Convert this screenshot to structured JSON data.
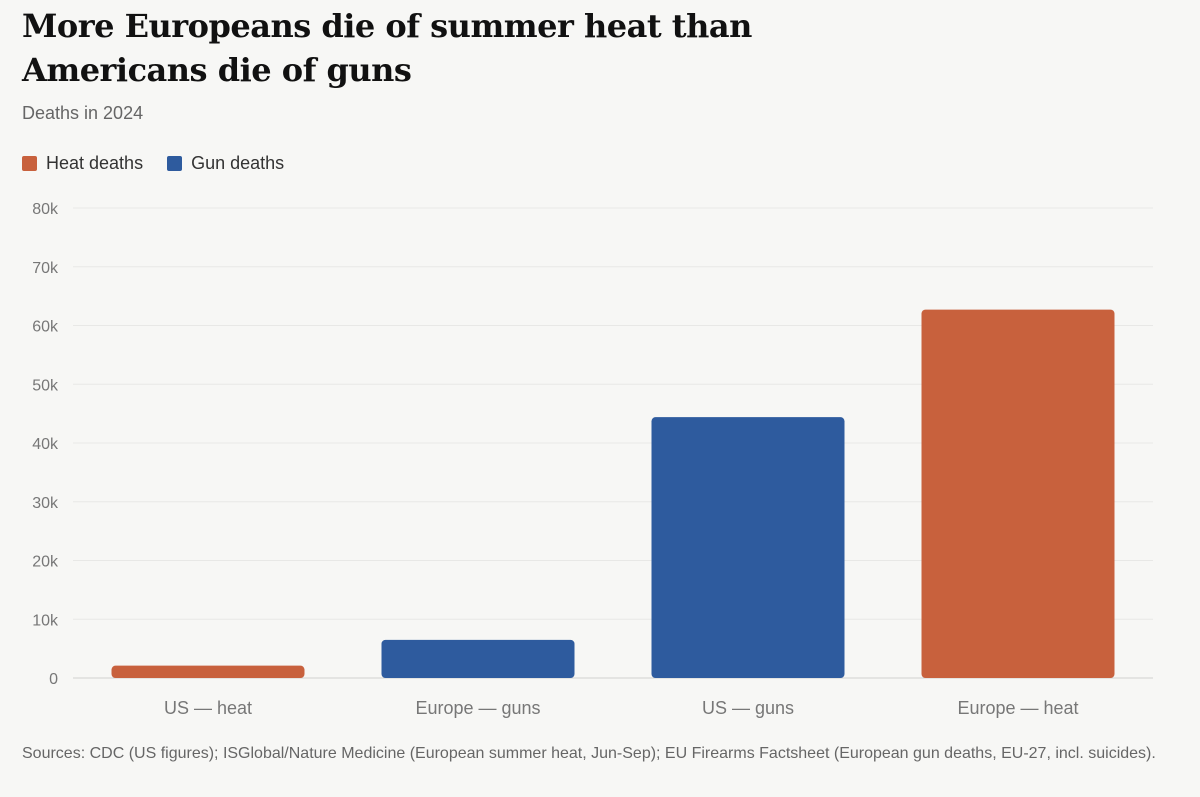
{
  "chart_data": {
    "type": "bar",
    "title": "More Europeans die of summer heat than Americans die of guns",
    "subtitle": "Deaths in 2024",
    "legend": [
      {
        "name": "Heat deaths",
        "color": "#c8613d"
      },
      {
        "name": "Gun deaths",
        "color": "#2e5b9e"
      }
    ],
    "legend_placement": "top-left",
    "categories": [
      "US — heat",
      "Europe — guns",
      "US — guns",
      "Europe — heat"
    ],
    "values": [
      2100,
      6500,
      44400,
      62700
    ],
    "bar_series": [
      "Heat deaths",
      "Gun deaths",
      "Gun deaths",
      "Heat deaths"
    ],
    "ylim": [
      0,
      80000
    ],
    "yticks": [
      0,
      10000,
      20000,
      30000,
      40000,
      50000,
      60000,
      70000,
      80000
    ],
    "ytick_labels": [
      "0",
      "10k",
      "20k",
      "30k",
      "40k",
      "50k",
      "60k",
      "70k",
      "80k"
    ],
    "grid": true,
    "xlabel": "",
    "ylabel": ""
  },
  "footer": {
    "sources": "Sources: CDC (US figures); ISGlobal/Nature Medicine (European summer heat, Jun-Sep); EU Firearms Factsheet (European gun deaths, EU-27, incl. suicides)."
  }
}
